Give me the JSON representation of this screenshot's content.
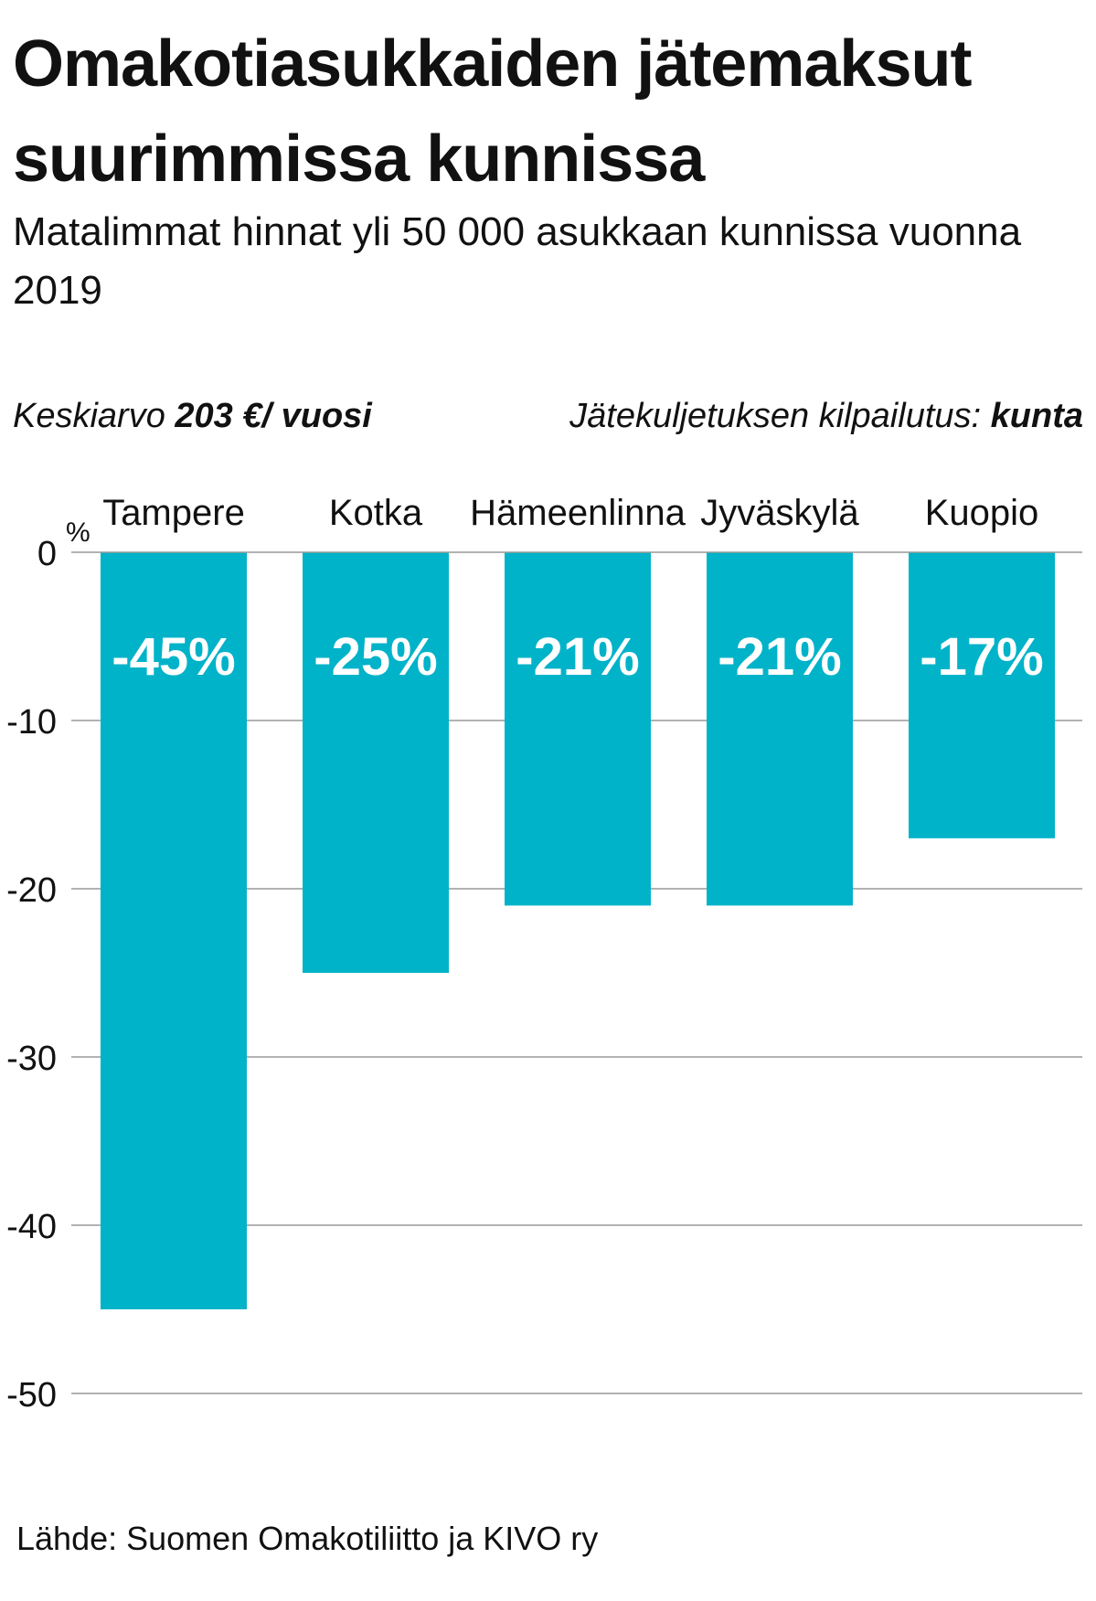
{
  "title": "Omakotiasukkaiden jätemaksut suurimmissa kunnissa",
  "subtitle": "Matalimmat hinnat yli 50 000 asukkaan kunnissa vuonna 2019",
  "notes": {
    "average_prefix": "Keskiarvo ",
    "average_value": "203 €/ vuosi",
    "tender_prefix": "Jätekuljetuksen kilpailutus: ",
    "tender_value": "kunta"
  },
  "source": "Lähde: Suomen Omakotiliitto ja KIVO ry",
  "colors": {
    "bar": "#00b3c9",
    "grid": "#999999",
    "text": "#111111",
    "label": "#ffffff"
  },
  "chart_data": {
    "type": "bar",
    "categories": [
      "Tampere",
      "Kotka",
      "Hämeenlinna",
      "Jyväskylä",
      "Kuopio"
    ],
    "values": [
      -45,
      -25,
      -21,
      -21,
      -17
    ],
    "data_labels": [
      "-45%",
      "-25%",
      "-21%",
      "-21%",
      "-17%"
    ],
    "ylabel": "%",
    "ylim": [
      -50,
      0
    ],
    "yticks": [
      0,
      -10,
      -20,
      -30,
      -40,
      -50
    ],
    "grid": true,
    "category_labels_position": "top"
  }
}
